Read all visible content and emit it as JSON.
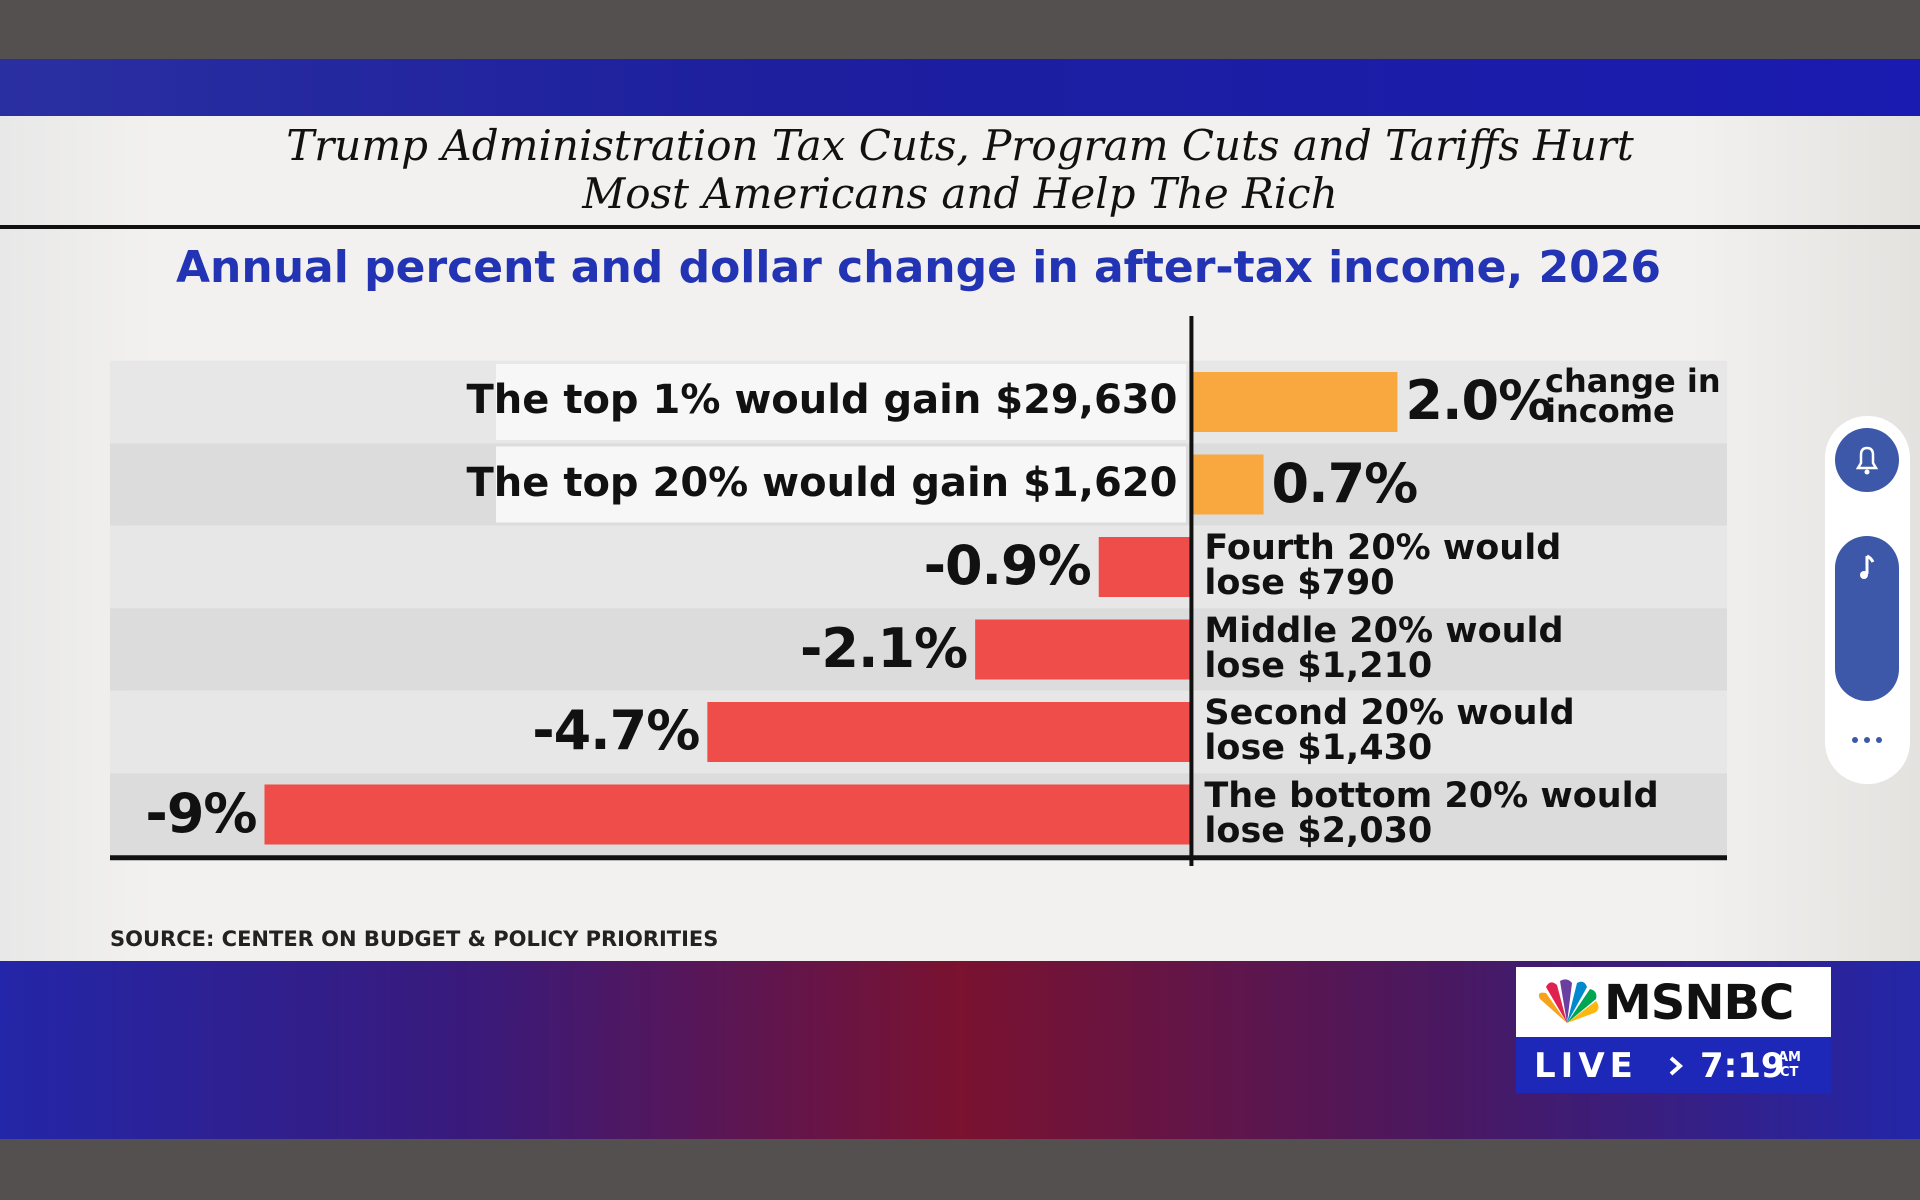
{
  "header": {
    "title": "Trump Administration Tax Cuts, Program Cuts and Tariffs Hurt\nMost Americans and Help The Rich"
  },
  "chart_data": {
    "type": "bar",
    "orientation": "horizontal",
    "title": "Annual percent and dollar change in after-tax income, 2026",
    "categories": [
      "The top 1% would gain $29,630",
      "The top 20% would gain $1,620",
      "Fourth 20% would\nlose $790",
      "Middle 20% would\nlose $1,210",
      "Second 20% would\nlose $1,430",
      "The bottom 20% would\nlose $2,030"
    ],
    "values": [
      2.0,
      0.7,
      -0.9,
      -2.1,
      -4.7,
      -9
    ],
    "value_labels": [
      "2.0%",
      "0.7%",
      "-0.9%",
      "-2.1%",
      "-4.7%",
      "-9%"
    ],
    "colors": [
      "#f8a83e",
      "#f8a83e",
      "#ef4d49",
      "#ef4d49",
      "#ef4d49",
      "#ef4d49"
    ],
    "xlim": [
      -10.5,
      5.2
    ],
    "annotation": "change in\nincome",
    "source": "SOURCE: CENTER ON BUDGET & POLICY PRIORITIES"
  },
  "broadcast": {
    "network": "MSNBC",
    "live": "LIVE",
    "time": "7:19",
    "meridiem": "AM",
    "zone": "CT"
  }
}
